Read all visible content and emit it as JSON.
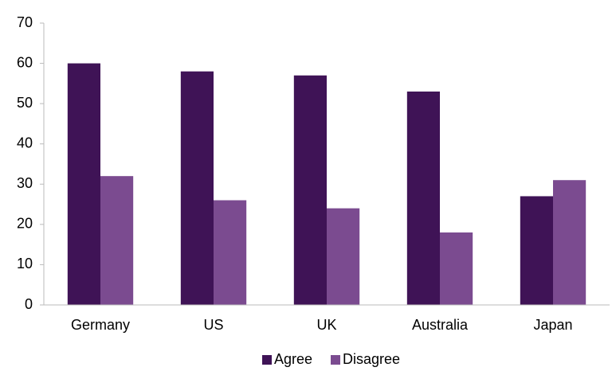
{
  "chart_data": {
    "type": "bar",
    "categories": [
      "Germany",
      "US",
      "UK",
      "Australia",
      "Japan"
    ],
    "series": [
      {
        "name": "Agree",
        "color": "#3f1356",
        "values": [
          60,
          58,
          57,
          53,
          27
        ]
      },
      {
        "name": "Disagree",
        "color": "#7b4b90",
        "values": [
          32,
          26,
          24,
          18,
          31
        ]
      }
    ],
    "ylim": [
      0,
      70
    ],
    "yticks": [
      0,
      10,
      20,
      30,
      40,
      50,
      60,
      70
    ],
    "grid": false,
    "legend": "bottom"
  }
}
